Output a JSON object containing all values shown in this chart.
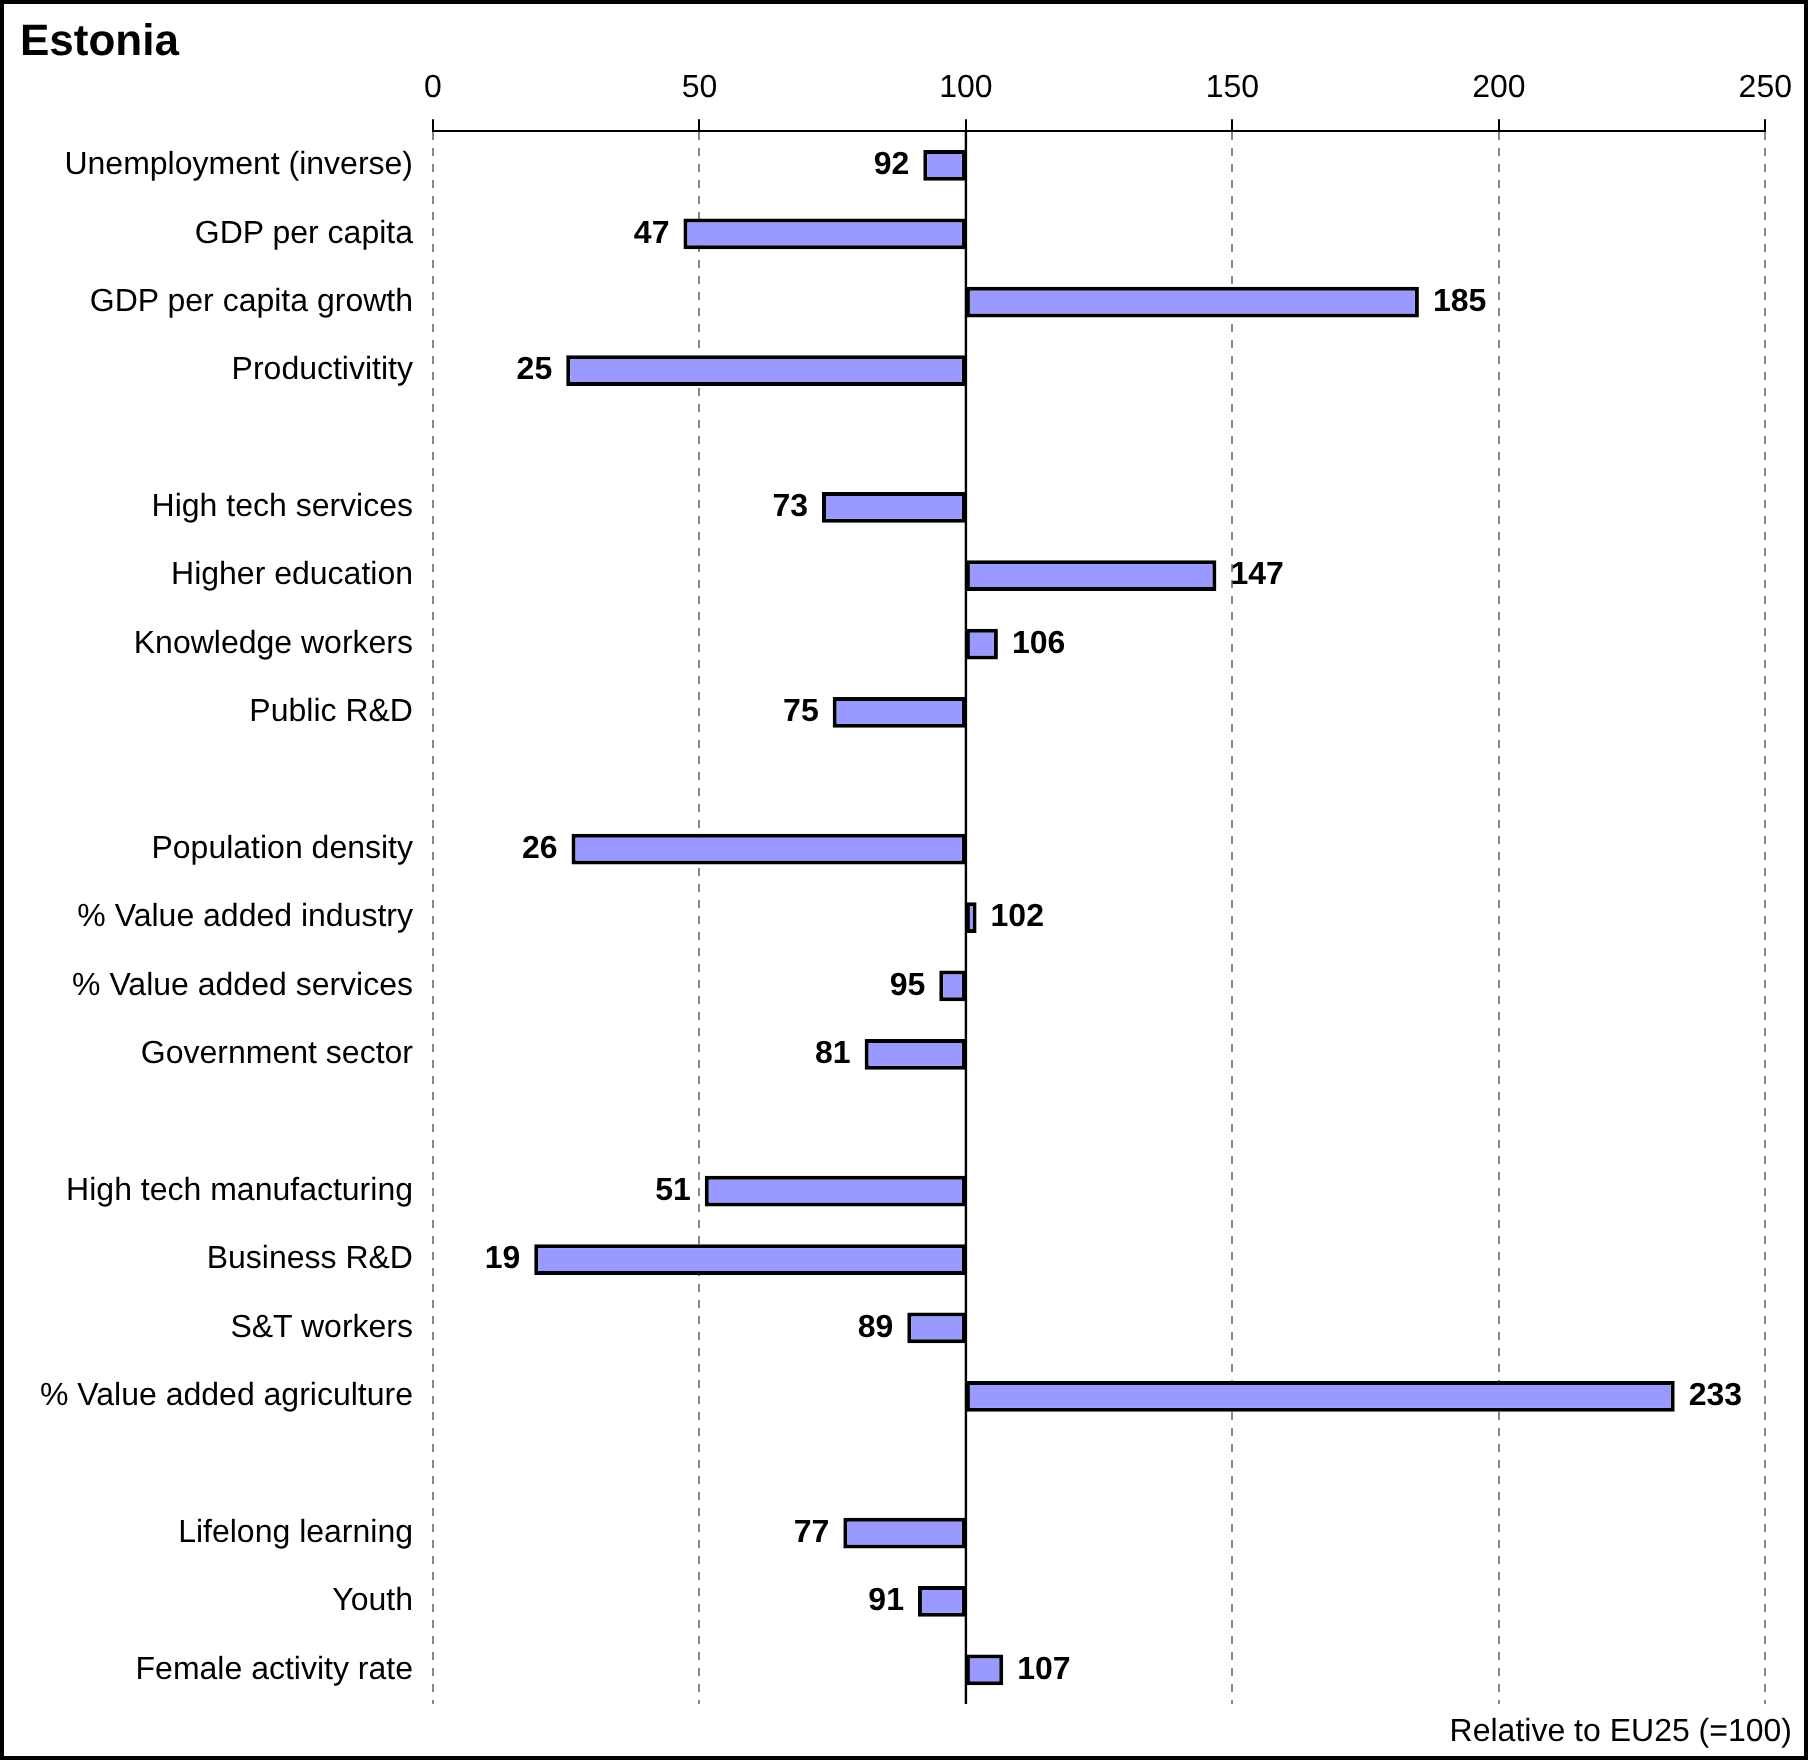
{
  "chart_data": {
    "type": "bar",
    "orientation": "horizontal",
    "title": "Estonia",
    "categories": [
      "Unemployment (inverse)",
      "GDP per capita",
      "GDP per capita growth",
      "Productivitity",
      null,
      "High tech services",
      "Higher education",
      "Knowledge workers",
      "Public R&D",
      null,
      "Population density",
      "% Value added industry",
      "% Value added services",
      "Government sector",
      null,
      "High tech manufacturing",
      "Business R&D",
      "S&T workers",
      "% Value added agriculture",
      null,
      "Lifelong learning",
      "Youth",
      "Female activity rate"
    ],
    "base": [
      100,
      100,
      100,
      100,
      null,
      100,
      100,
      100,
      100,
      null,
      100,
      100,
      100,
      100,
      null,
      100,
      100,
      100,
      100,
      null,
      100,
      100,
      100
    ],
    "values": [
      -8,
      -53,
      85,
      -75,
      null,
      -27,
      47,
      6,
      -25,
      null,
      -74,
      2,
      -5,
      -19,
      null,
      -49,
      -81,
      -11,
      133,
      null,
      -23,
      -9,
      7
    ],
    "value_labels": [
      "92",
      "47",
      "185",
      "25",
      null,
      "73",
      "147",
      "106",
      "75",
      null,
      "26",
      "102",
      "95",
      "81",
      null,
      "51",
      "19",
      "89",
      "233",
      null,
      "77",
      "91",
      "107"
    ],
    "color": "#9999ff",
    "xlim": [
      0,
      250
    ],
    "xticks": [
      0,
      50,
      100,
      150,
      200,
      250
    ],
    "ref_lines": [
      {
        "axis": "x",
        "value": 100,
        "color": "#000000"
      }
    ],
    "grid": "x",
    "legend": false,
    "annotations": [
      "Relative to EU25 (=100)"
    ]
  }
}
